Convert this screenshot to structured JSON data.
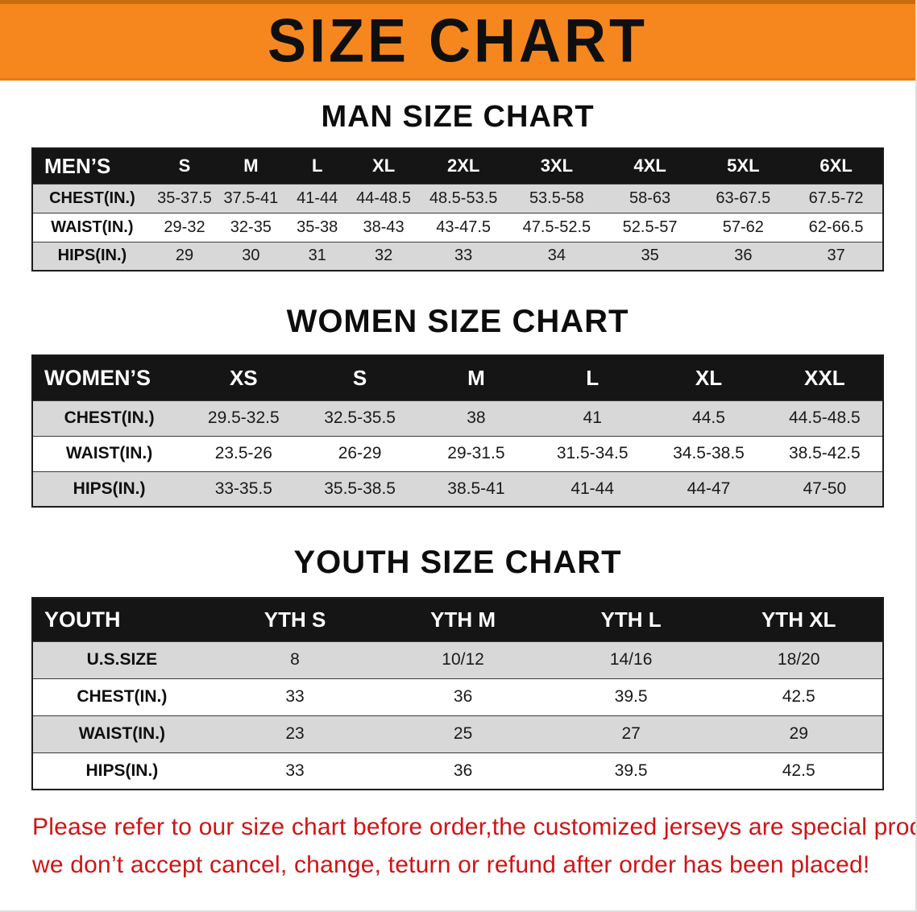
{
  "banner": {
    "title": "SIZE CHART"
  },
  "colors": {
    "banner_bg": "#f6871f",
    "banner_text": "#0f0f0f",
    "table_header_bg": "#151515",
    "table_header_text": "#ffffff",
    "row_shade": "#d8d8d8",
    "note_text": "#d01414"
  },
  "sections": [
    {
      "id": "men",
      "heading": "MAN SIZE CHART",
      "table": {
        "header": [
          "MEN’S",
          "S",
          "M",
          "L",
          "XL",
          "2XL",
          "3XL",
          "4XL",
          "5XL",
          "6XL"
        ],
        "rows": [
          [
            "CHEST(IN.)",
            "35-37.5",
            "37.5-41",
            "41-44",
            "44-48.5",
            "48.5-53.5",
            "53.5-58",
            "58-63",
            "63-67.5",
            "67.5-72"
          ],
          [
            "WAIST(IN.)",
            "29-32",
            "32-35",
            "35-38",
            "38-43",
            "43-47.5",
            "47.5-52.5",
            "52.5-57",
            "57-62",
            "62-66.5"
          ],
          [
            "HIPS(IN.)",
            "29",
            "30",
            "31",
            "32",
            "33",
            "34",
            "35",
            "36",
            "37"
          ]
        ]
      }
    },
    {
      "id": "women",
      "heading": "WOMEN SIZE CHART",
      "table": {
        "header": [
          "WOMEN’S",
          "XS",
          "S",
          "M",
          "L",
          "XL",
          "XXL"
        ],
        "rows": [
          [
            "CHEST(IN.)",
            "29.5-32.5",
            "32.5-35.5",
            "38",
            "41",
            "44.5",
            "44.5-48.5"
          ],
          [
            "WAIST(IN.)",
            "23.5-26",
            "26-29",
            "29-31.5",
            "31.5-34.5",
            "34.5-38.5",
            "38.5-42.5"
          ],
          [
            "HIPS(IN.)",
            "33-35.5",
            "35.5-38.5",
            "38.5-41",
            "41-44",
            "44-47",
            "47-50"
          ]
        ]
      }
    },
    {
      "id": "youth",
      "heading": "YOUTH SIZE CHART",
      "table": {
        "header": [
          "YOUTH",
          "YTH S",
          "YTH M",
          "YTH L",
          "YTH XL"
        ],
        "rows": [
          [
            "U.S.SIZE",
            "8",
            "10/12",
            "14/16",
            "18/20"
          ],
          [
            "CHEST(IN.)",
            "33",
            "36",
            "39.5",
            "42.5"
          ],
          [
            "WAIST(IN.)",
            "23",
            "25",
            "27",
            "29"
          ],
          [
            "HIPS(IN.)",
            "33",
            "36",
            "39.5",
            "42.5"
          ]
        ]
      }
    }
  ],
  "note": {
    "lines": [
      "Please refer to our size chart before order,the customized jerseys are special products,",
      "we don’t accept cancel, change, teturn or refund after order has been placed!"
    ]
  }
}
